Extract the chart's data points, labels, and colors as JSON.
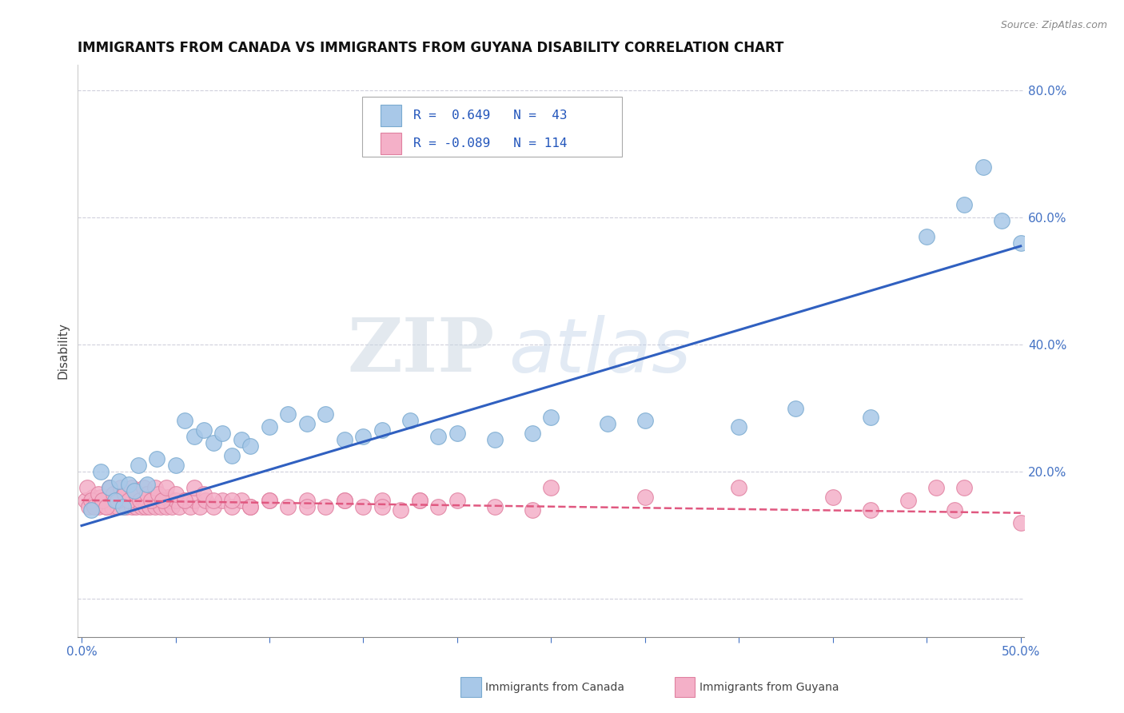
{
  "title": "IMMIGRANTS FROM CANADA VS IMMIGRANTS FROM GUYANA DISABILITY CORRELATION CHART",
  "source": "Source: ZipAtlas.com",
  "xlabel": "",
  "ylabel": "Disability",
  "xlim": [
    -0.002,
    0.502
  ],
  "ylim": [
    -0.06,
    0.84
  ],
  "yticks_right": [
    0.0,
    0.2,
    0.4,
    0.6,
    0.8
  ],
  "yticklabels_right": [
    "",
    "20.0%",
    "40.0%",
    "60.0%",
    "80.0%"
  ],
  "canada_color": "#a8c8e8",
  "canada_edge": "#7aaad0",
  "guyana_color": "#f4b0c8",
  "guyana_edge": "#e080a0",
  "canada_line_color": "#3060c0",
  "guyana_line_color": "#e05880",
  "legend_R_canada": "R =  0.649",
  "legend_N_canada": "N =  43",
  "legend_R_guyana": "R = -0.089",
  "legend_N_guyana": "N = 114",
  "watermark_zip": "ZIP",
  "watermark_atlas": "atlas",
  "background_color": "#ffffff",
  "grid_color": "#d0d0dc",
  "canada_scatter_x": [
    0.005,
    0.01,
    0.015,
    0.018,
    0.02,
    0.022,
    0.025,
    0.028,
    0.03,
    0.035,
    0.04,
    0.05,
    0.055,
    0.06,
    0.065,
    0.07,
    0.075,
    0.08,
    0.085,
    0.09,
    0.1,
    0.11,
    0.12,
    0.13,
    0.14,
    0.15,
    0.16,
    0.175,
    0.19,
    0.2,
    0.22,
    0.24,
    0.25,
    0.28,
    0.3,
    0.35,
    0.38,
    0.42,
    0.45,
    0.47,
    0.48,
    0.49,
    0.5
  ],
  "canada_scatter_y": [
    0.14,
    0.2,
    0.175,
    0.155,
    0.185,
    0.145,
    0.18,
    0.17,
    0.21,
    0.18,
    0.22,
    0.21,
    0.28,
    0.255,
    0.265,
    0.245,
    0.26,
    0.225,
    0.25,
    0.24,
    0.27,
    0.29,
    0.275,
    0.29,
    0.25,
    0.255,
    0.265,
    0.28,
    0.255,
    0.26,
    0.25,
    0.26,
    0.285,
    0.275,
    0.28,
    0.27,
    0.3,
    0.285,
    0.57,
    0.62,
    0.68,
    0.595,
    0.56
  ],
  "guyana_scatter_x": [
    0.002,
    0.004,
    0.006,
    0.007,
    0.008,
    0.009,
    0.01,
    0.011,
    0.012,
    0.013,
    0.014,
    0.015,
    0.016,
    0.017,
    0.018,
    0.019,
    0.02,
    0.021,
    0.022,
    0.023,
    0.024,
    0.025,
    0.026,
    0.027,
    0.028,
    0.029,
    0.03,
    0.031,
    0.032,
    0.033,
    0.034,
    0.035,
    0.036,
    0.037,
    0.038,
    0.039,
    0.04,
    0.041,
    0.042,
    0.043,
    0.044,
    0.045,
    0.046,
    0.047,
    0.048,
    0.05,
    0.052,
    0.055,
    0.058,
    0.06,
    0.063,
    0.066,
    0.07,
    0.075,
    0.08,
    0.085,
    0.09,
    0.1,
    0.11,
    0.12,
    0.13,
    0.14,
    0.15,
    0.16,
    0.17,
    0.18,
    0.19,
    0.2,
    0.22,
    0.24,
    0.003,
    0.005,
    0.007,
    0.009,
    0.011,
    0.013,
    0.015,
    0.017,
    0.019,
    0.021,
    0.023,
    0.025,
    0.027,
    0.029,
    0.031,
    0.033,
    0.035,
    0.037,
    0.039,
    0.041,
    0.043,
    0.045,
    0.05,
    0.055,
    0.06,
    0.065,
    0.07,
    0.08,
    0.09,
    0.1,
    0.12,
    0.14,
    0.16,
    0.18,
    0.25,
    0.3,
    0.35,
    0.4,
    0.42,
    0.44,
    0.455,
    0.465,
    0.47,
    0.5
  ],
  "guyana_scatter_y": [
    0.155,
    0.145,
    0.16,
    0.15,
    0.155,
    0.145,
    0.16,
    0.15,
    0.155,
    0.145,
    0.16,
    0.155,
    0.145,
    0.16,
    0.155,
    0.145,
    0.16,
    0.155,
    0.145,
    0.155,
    0.145,
    0.16,
    0.155,
    0.145,
    0.155,
    0.145,
    0.16,
    0.155,
    0.145,
    0.155,
    0.145,
    0.155,
    0.145,
    0.16,
    0.155,
    0.145,
    0.16,
    0.155,
    0.145,
    0.16,
    0.155,
    0.145,
    0.16,
    0.155,
    0.145,
    0.155,
    0.145,
    0.155,
    0.145,
    0.155,
    0.145,
    0.155,
    0.145,
    0.155,
    0.145,
    0.155,
    0.145,
    0.155,
    0.145,
    0.155,
    0.145,
    0.155,
    0.145,
    0.155,
    0.14,
    0.155,
    0.145,
    0.155,
    0.145,
    0.14,
    0.175,
    0.155,
    0.145,
    0.165,
    0.155,
    0.145,
    0.175,
    0.165,
    0.155,
    0.175,
    0.165,
    0.155,
    0.175,
    0.165,
    0.155,
    0.175,
    0.165,
    0.155,
    0.175,
    0.165,
    0.155,
    0.175,
    0.165,
    0.155,
    0.175,
    0.165,
    0.155,
    0.155,
    0.145,
    0.155,
    0.145,
    0.155,
    0.145,
    0.155,
    0.175,
    0.16,
    0.175,
    0.16,
    0.14,
    0.155,
    0.175,
    0.14,
    0.175,
    0.12
  ],
  "canada_trend_x": [
    0.0,
    0.5
  ],
  "canada_trend_y": [
    0.115,
    0.555
  ],
  "guyana_trend_x": [
    0.0,
    0.5
  ],
  "guyana_trend_y": [
    0.155,
    0.135
  ]
}
